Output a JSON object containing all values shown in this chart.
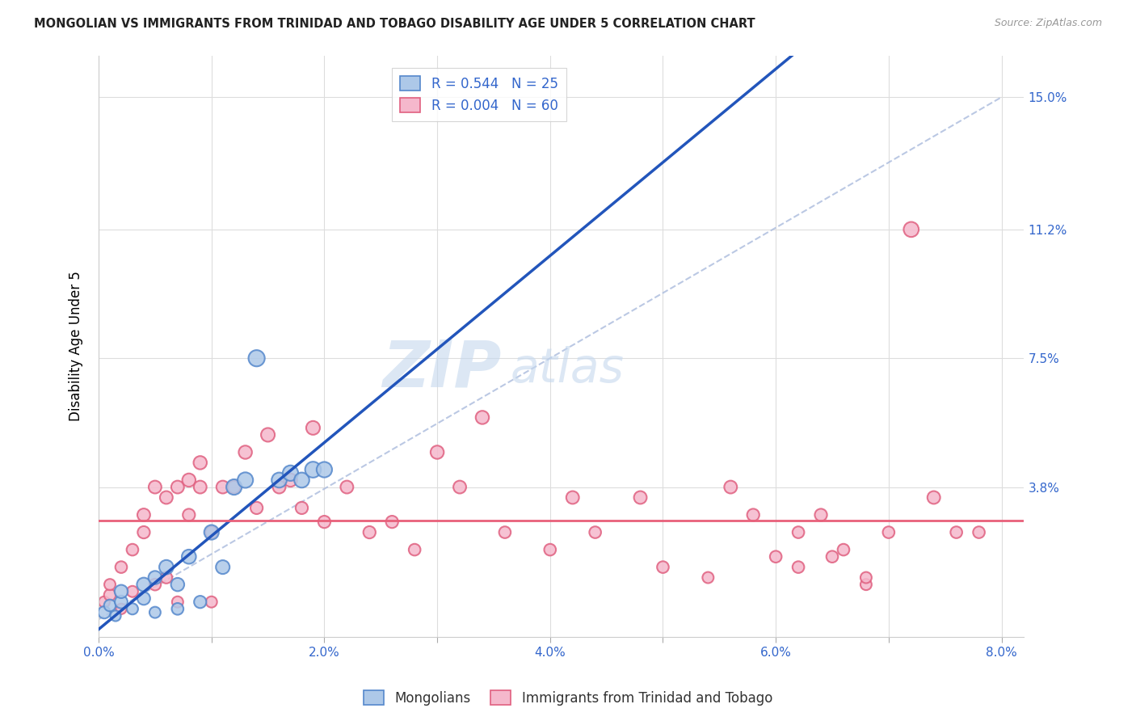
{
  "title": "MONGOLIAN VS IMMIGRANTS FROM TRINIDAD AND TOBAGO DISABILITY AGE UNDER 5 CORRELATION CHART",
  "source": "Source: ZipAtlas.com",
  "ylabel": "Disability Age Under 5",
  "ytick_labels": [
    "3.8%",
    "7.5%",
    "11.2%",
    "15.0%"
  ],
  "ytick_values": [
    0.038,
    0.075,
    0.112,
    0.15
  ],
  "xlim": [
    0.0,
    0.082
  ],
  "ylim": [
    -0.005,
    0.162
  ],
  "legend_blue_label": "R = 0.544   N = 25",
  "legend_pink_label": "R = 0.004   N = 60",
  "mongolian_color": "#adc8e8",
  "tt_color": "#f5b8cc",
  "mongolian_edge": "#5588cc",
  "tt_edge": "#e06080",
  "blue_line_color": "#2255bb",
  "pink_line_color": "#e8607a",
  "dashed_line_color": "#aabbdd",
  "legend_bottom_mongolians": "Mongolians",
  "legend_bottom_tt": "Immigrants from Trinidad and Tobago",
  "mongolians_x": [
    0.0005,
    0.001,
    0.0015,
    0.002,
    0.002,
    0.003,
    0.004,
    0.004,
    0.005,
    0.005,
    0.006,
    0.007,
    0.007,
    0.008,
    0.009,
    0.01,
    0.011,
    0.012,
    0.013,
    0.014,
    0.016,
    0.017,
    0.018,
    0.019,
    0.02
  ],
  "mongolians_y": [
    0.002,
    0.004,
    0.001,
    0.005,
    0.008,
    0.003,
    0.006,
    0.01,
    0.012,
    0.002,
    0.015,
    0.01,
    0.003,
    0.018,
    0.005,
    0.025,
    0.015,
    0.038,
    0.04,
    0.075,
    0.04,
    0.042,
    0.04,
    0.043,
    0.043
  ],
  "mongolians_sizes": [
    120,
    110,
    90,
    130,
    140,
    100,
    130,
    150,
    140,
    100,
    160,
    140,
    110,
    160,
    120,
    170,
    150,
    190,
    190,
    210,
    180,
    190,
    180,
    200,
    190
  ],
  "tt_x": [
    0.0005,
    0.001,
    0.001,
    0.002,
    0.002,
    0.003,
    0.003,
    0.004,
    0.004,
    0.005,
    0.005,
    0.006,
    0.006,
    0.007,
    0.007,
    0.008,
    0.008,
    0.009,
    0.009,
    0.01,
    0.01,
    0.011,
    0.012,
    0.013,
    0.014,
    0.015,
    0.016,
    0.017,
    0.018,
    0.019,
    0.02,
    0.022,
    0.024,
    0.026,
    0.028,
    0.03,
    0.032,
    0.034,
    0.036,
    0.04,
    0.042,
    0.044,
    0.048,
    0.05,
    0.054,
    0.056,
    0.058,
    0.06,
    0.062,
    0.065,
    0.068,
    0.07,
    0.072,
    0.074,
    0.076,
    0.078,
    0.062,
    0.064,
    0.066,
    0.068
  ],
  "tt_y": [
    0.005,
    0.007,
    0.01,
    0.003,
    0.015,
    0.008,
    0.02,
    0.025,
    0.03,
    0.01,
    0.038,
    0.012,
    0.035,
    0.038,
    0.005,
    0.03,
    0.04,
    0.045,
    0.038,
    0.025,
    0.005,
    0.038,
    0.038,
    0.048,
    0.032,
    0.053,
    0.038,
    0.04,
    0.032,
    0.055,
    0.028,
    0.038,
    0.025,
    0.028,
    0.02,
    0.048,
    0.038,
    0.058,
    0.025,
    0.02,
    0.035,
    0.025,
    0.035,
    0.015,
    0.012,
    0.038,
    0.03,
    0.018,
    0.025,
    0.018,
    0.01,
    0.025,
    0.112,
    0.035,
    0.025,
    0.025,
    0.015,
    0.03,
    0.02,
    0.012
  ],
  "tt_sizes": [
    100,
    110,
    100,
    90,
    110,
    100,
    110,
    120,
    130,
    110,
    130,
    110,
    130,
    130,
    100,
    120,
    140,
    140,
    130,
    120,
    100,
    130,
    130,
    140,
    120,
    150,
    130,
    140,
    120,
    150,
    120,
    130,
    120,
    120,
    110,
    140,
    130,
    140,
    110,
    110,
    130,
    110,
    130,
    110,
    100,
    130,
    120,
    110,
    110,
    110,
    100,
    110,
    180,
    130,
    110,
    110,
    110,
    120,
    110,
    100
  ]
}
